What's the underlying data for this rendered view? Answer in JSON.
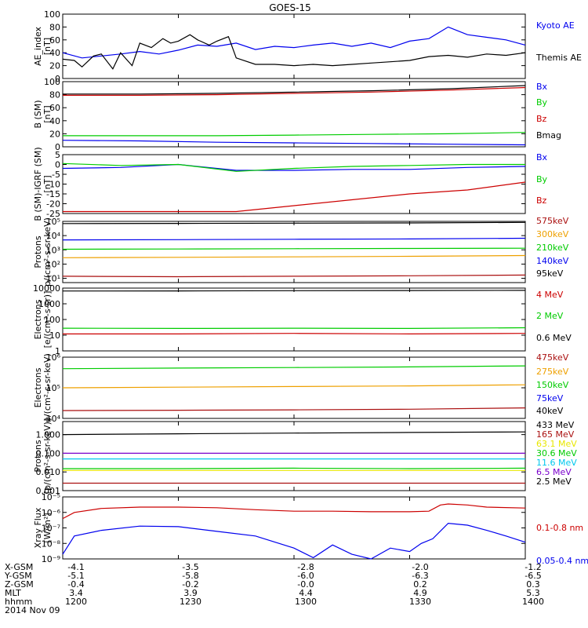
{
  "title": "GOES-15",
  "colors": {
    "black": "#000000",
    "blue": "#0000ee",
    "red": "#cc0000",
    "green": "#00cc00",
    "orange": "#eea000",
    "yellow": "#e8e800",
    "cyan": "#00c8ee",
    "violet": "#7a00cc",
    "maroon": "#880000",
    "darkred": "#aa1010"
  },
  "chart_data": [
    {
      "type": "line",
      "ylabel": [
        "AE_index",
        "[nT]"
      ],
      "ylim": [
        0,
        100
      ],
      "yticks": [
        "0",
        "20",
        "40",
        "60",
        "80",
        "100"
      ],
      "series": [
        {
          "name": "Kyoto AE",
          "color": "blue",
          "x": [
            1200,
            1205,
            1210,
            1215,
            1220,
            1225,
            1230,
            1235,
            1240,
            1245,
            1250,
            1255,
            1300,
            1305,
            1310,
            1315,
            1320,
            1325,
            1330,
            1335,
            1340,
            1345,
            1350,
            1355,
            1400
          ],
          "y": [
            40,
            32,
            35,
            38,
            42,
            38,
            44,
            52,
            50,
            55,
            45,
            50,
            48,
            52,
            55,
            50,
            55,
            48,
            58,
            62,
            80,
            68,
            64,
            60,
            52
          ]
        },
        {
          "name": "Themis AE",
          "color": "black",
          "x": [
            1200,
            1203,
            1205,
            1208,
            1210,
            1213,
            1215,
            1218,
            1220,
            1223,
            1226,
            1228,
            1230,
            1233,
            1235,
            1238,
            1240,
            1243,
            1245,
            1250,
            1255,
            1300,
            1305,
            1310,
            1315,
            1320,
            1325,
            1330,
            1335,
            1340,
            1345,
            1350,
            1355,
            1400
          ],
          "y": [
            30,
            28,
            18,
            35,
            38,
            15,
            40,
            20,
            55,
            48,
            62,
            55,
            58,
            68,
            60,
            52,
            58,
            65,
            32,
            22,
            22,
            20,
            22,
            20,
            22,
            24,
            26,
            28,
            34,
            36,
            33,
            38,
            36,
            40
          ]
        }
      ]
    },
    {
      "type": "line",
      "ylabel": [
        "B (SM)",
        "[nT]"
      ],
      "ylim": [
        0,
        100
      ],
      "yticks": [
        "0",
        "20",
        "40",
        "60",
        "80",
        "100"
      ],
      "series": [
        {
          "name": "Bx",
          "color": "blue",
          "x": [
            1200,
            1220,
            1240,
            1300,
            1320,
            1340,
            1400
          ],
          "y": [
            10,
            9,
            7,
            6,
            5,
            4,
            3
          ]
        },
        {
          "name": "By",
          "color": "green",
          "x": [
            1200,
            1220,
            1240,
            1300,
            1320,
            1340,
            1400
          ],
          "y": [
            17,
            17,
            17,
            18,
            19,
            20,
            22
          ]
        },
        {
          "name": "Bz",
          "color": "red",
          "x": [
            1200,
            1220,
            1240,
            1300,
            1320,
            1340,
            1400
          ],
          "y": [
            79,
            79,
            80,
            82,
            84,
            87,
            91
          ]
        },
        {
          "name": "Bmag",
          "color": "black",
          "x": [
            1200,
            1220,
            1240,
            1300,
            1320,
            1340,
            1400
          ],
          "y": [
            81,
            81,
            82,
            84,
            86,
            89,
            94
          ]
        }
      ]
    },
    {
      "type": "line",
      "ylabel": [
        "B (SM)-IGRF (SM)",
        "[nT]"
      ],
      "ylim": [
        -25,
        5
      ],
      "yticks": [
        "-25",
        "-20",
        "-15",
        "-10",
        "-5",
        "0",
        "5"
      ],
      "series": [
        {
          "name": "Bx",
          "color": "blue",
          "x": [
            1200,
            1215,
            1230,
            1245,
            1300,
            1315,
            1330,
            1345,
            1400
          ],
          "y": [
            -2,
            -1.5,
            0,
            -3,
            -3,
            -2.5,
            -2.5,
            -1.5,
            -1
          ]
        },
        {
          "name": "By",
          "color": "green",
          "x": [
            1200,
            1215,
            1230,
            1245,
            1300,
            1315,
            1330,
            1345,
            1400
          ],
          "y": [
            0.5,
            -0.5,
            0,
            -3.5,
            -2,
            -1,
            -0.5,
            0,
            0
          ]
        },
        {
          "name": "Bz",
          "color": "red",
          "x": [
            1200,
            1215,
            1230,
            1245,
            1300,
            1315,
            1330,
            1345,
            1400
          ],
          "y": [
            -24,
            -24,
            -24,
            -24,
            -21,
            -18,
            -15,
            -13,
            -9
          ]
        }
      ]
    },
    {
      "type": "line",
      "log": true,
      "ylabel": [
        "Protons",
        "p/(cm²-s-sr-keV)"
      ],
      "ylim": [
        5,
        100000
      ],
      "yticks": [
        "10¹",
        "10²",
        "10³",
        "10⁴",
        "10⁵"
      ],
      "ytickvals": [
        10,
        100,
        1000,
        10000,
        100000
      ],
      "series": [
        {
          "name": "575keV",
          "color": "darkred",
          "x": [
            1200,
            1230,
            1300,
            1330,
            1400
          ],
          "y": [
            14,
            13,
            14,
            15,
            17
          ]
        },
        {
          "name": "300keV",
          "color": "orange",
          "x": [
            1200,
            1230,
            1300,
            1330,
            1400
          ],
          "y": [
            280,
            300,
            320,
            350,
            400
          ]
        },
        {
          "name": "210keV",
          "color": "green",
          "x": [
            1200,
            1230,
            1300,
            1330,
            1400
          ],
          "y": [
            1100,
            1150,
            1200,
            1250,
            1300
          ]
        },
        {
          "name": "140keV",
          "color": "blue",
          "x": [
            1200,
            1230,
            1300,
            1330,
            1400
          ],
          "y": [
            5000,
            5200,
            5500,
            5800,
            6500
          ]
        },
        {
          "name": "95keV",
          "color": "black",
          "x": [
            1200,
            1230,
            1300,
            1330,
            1400
          ],
          "y": [
            70000,
            72000,
            75000,
            78000,
            85000
          ]
        }
      ]
    },
    {
      "type": "line",
      "log": true,
      "ylabel": [
        "Electrons",
        "[e/(cm²-s-sr)]"
      ],
      "ylim": [
        1,
        10000
      ],
      "yticks": [
        "1",
        "10",
        "100",
        "1000",
        "10000"
      ],
      "ytickvals": [
        1,
        10,
        100,
        1000,
        10000
      ],
      "series": [
        {
          "name": "4 MeV",
          "color": "red",
          "x": [
            1200,
            1230,
            1300,
            1330,
            1400
          ],
          "y": [
            12,
            12,
            13,
            12,
            13
          ]
        },
        {
          "name": "2 MeV",
          "color": "green",
          "x": [
            1200,
            1230,
            1300,
            1330,
            1400
          ],
          "y": [
            28,
            27,
            28,
            27,
            30
          ]
        },
        {
          "name": "0.6 MeV",
          "color": "black",
          "x": [
            1200,
            1230,
            1300,
            1330,
            1400
          ],
          "y": [
            6500,
            6600,
            6800,
            7000,
            7200
          ]
        }
      ]
    },
    {
      "type": "line",
      "log": true,
      "ylabel": [
        "Electrons",
        "e/(cm²-s-sr-keV)"
      ],
      "ylim": [
        10000,
        1000000
      ],
      "yticks": [
        "10⁴",
        "10⁵",
        "10⁶"
      ],
      "ytickvals": [
        10000,
        100000,
        1000000
      ],
      "series": [
        {
          "name": "475keV",
          "color": "darkred",
          "x": [
            1200,
            1230,
            1300,
            1330,
            1400
          ],
          "y": [
            18000,
            18500,
            19000,
            20000,
            22000
          ]
        },
        {
          "name": "275keV",
          "color": "orange",
          "x": [
            1200,
            1230,
            1300,
            1330,
            1400
          ],
          "y": [
            100000,
            105000,
            110000,
            115000,
            125000
          ]
        },
        {
          "name": "150keV",
          "color": "green",
          "x": [
            1200,
            1230,
            1300,
            1330,
            1400
          ],
          "y": [
            420000,
            440000,
            460000,
            480000,
            520000
          ]
        },
        {
          "name": "75keV",
          "color": "blue",
          "x": [],
          "y": []
        },
        {
          "name": "40keV",
          "color": "black",
          "x": [],
          "y": []
        }
      ]
    },
    {
      "type": "line",
      "log": true,
      "ylabel": [
        "Protons",
        "[p/(cm²-s-sr-keV)]"
      ],
      "ylim": [
        0.001,
        5
      ],
      "yticks": [
        "0.001",
        "0.010",
        "0.100",
        "1.000"
      ],
      "ytickvals": [
        0.001,
        0.01,
        0.1,
        1
      ],
      "series": [
        {
          "name": "433 MeV",
          "color": "black",
          "x": [
            1200,
            1230,
            1300,
            1330,
            1400
          ],
          "y": [
            1.0,
            1.1,
            1.2,
            1.3,
            1.4
          ]
        },
        {
          "name": "165 MeV",
          "color": "darkred",
          "x": [
            1200,
            1230,
            1300,
            1330,
            1400
          ],
          "y": [
            0.0025,
            0.0025,
            0.0025,
            0.0025,
            0.0025
          ]
        },
        {
          "name": "63.1 MeV",
          "color": "yellow",
          "x": [
            1200,
            1230,
            1300,
            1330,
            1400
          ],
          "y": [
            0.012,
            0.012,
            0.012,
            0.012,
            0.012
          ]
        },
        {
          "name": "30.6 MeV",
          "color": "green",
          "x": [
            1200,
            1230,
            1300,
            1330,
            1400
          ],
          "y": [
            0.015,
            0.015,
            0.016,
            0.015,
            0.016
          ]
        },
        {
          "name": "11.6 MeV",
          "color": "cyan",
          "x": [
            1200,
            1230,
            1300,
            1330,
            1400
          ],
          "y": [
            0.05,
            0.05,
            0.05,
            0.05,
            0.05
          ]
        },
        {
          "name": "6.5 MeV",
          "color": "violet",
          "x": [
            1200,
            1230,
            1300,
            1330,
            1400
          ],
          "y": [
            0.1,
            0.1,
            0.1,
            0.1,
            0.1
          ]
        },
        {
          "name": "2.5 MeV",
          "color": "black",
          "x": [],
          "y": []
        }
      ]
    },
    {
      "type": "line",
      "log": true,
      "ylabel": [
        "Xray Flux",
        "[W/m²]"
      ],
      "ylim": [
        1e-09,
        1e-05
      ],
      "yticks": [
        "10⁻⁹",
        "10⁻⁸",
        "10⁻⁷",
        "10⁻⁶",
        "10⁻⁵"
      ],
      "ytickvals": [
        1e-09,
        1e-08,
        1e-07,
        1e-06,
        1e-05
      ],
      "series": [
        {
          "name": "0.1-0.8 nm",
          "color": "red",
          "x": [
            1200,
            1203,
            1210,
            1220,
            1230,
            1240,
            1250,
            1300,
            1310,
            1320,
            1330,
            1335,
            1338,
            1340,
            1345,
            1350,
            1400
          ],
          "y": [
            4e-07,
            1e-06,
            1.8e-06,
            2.2e-06,
            2.2e-06,
            2e-06,
            1.5e-06,
            1.2e-06,
            1.2e-06,
            1.1e-06,
            1.1e-06,
            1.2e-06,
            3e-06,
            3.5e-06,
            3e-06,
            2.2e-06,
            1.9e-06
          ]
        },
        {
          "name": "0.05-0.4 nm",
          "color": "blue",
          "x": [
            1200,
            1203,
            1210,
            1220,
            1230,
            1240,
            1250,
            1300,
            1305,
            1310,
            1315,
            1320,
            1325,
            1330,
            1333,
            1336,
            1340,
            1345,
            1350,
            1355,
            1400
          ],
          "y": [
            2e-09,
            3e-08,
            7e-08,
            1.3e-07,
            1.2e-07,
            6e-08,
            3e-08,
            5e-09,
            1.2e-09,
            8e-09,
            2e-09,
            1e-09,
            5e-09,
            3e-09,
            1e-08,
            2e-08,
            2e-07,
            1.5e-07,
            7e-08,
            3e-08,
            1.2e-08
          ]
        }
      ]
    }
  ],
  "xticks": [
    "1200",
    "1230",
    "1300",
    "1330",
    "1400"
  ],
  "ephemeris": {
    "row_labels": [
      "X-GSM",
      "Y-GSM",
      "Z-GSM",
      "MLT",
      "hhmm"
    ],
    "columns": [
      [
        "-4.1",
        "-5.1",
        "-0.4",
        "3.4",
        "1200"
      ],
      [
        "-3.5",
        "-5.8",
        "-0.2",
        "3.9",
        "1230"
      ],
      [
        "-2.8",
        "-6.0",
        "-0.0",
        "4.4",
        "1300"
      ],
      [
        "-2.0",
        "-6.3",
        "0.2",
        "4.9",
        "1330"
      ],
      [
        "-1.2",
        "-6.5",
        "0.3",
        "5.3",
        "1400"
      ]
    ],
    "date": "2014 Nov 09"
  }
}
